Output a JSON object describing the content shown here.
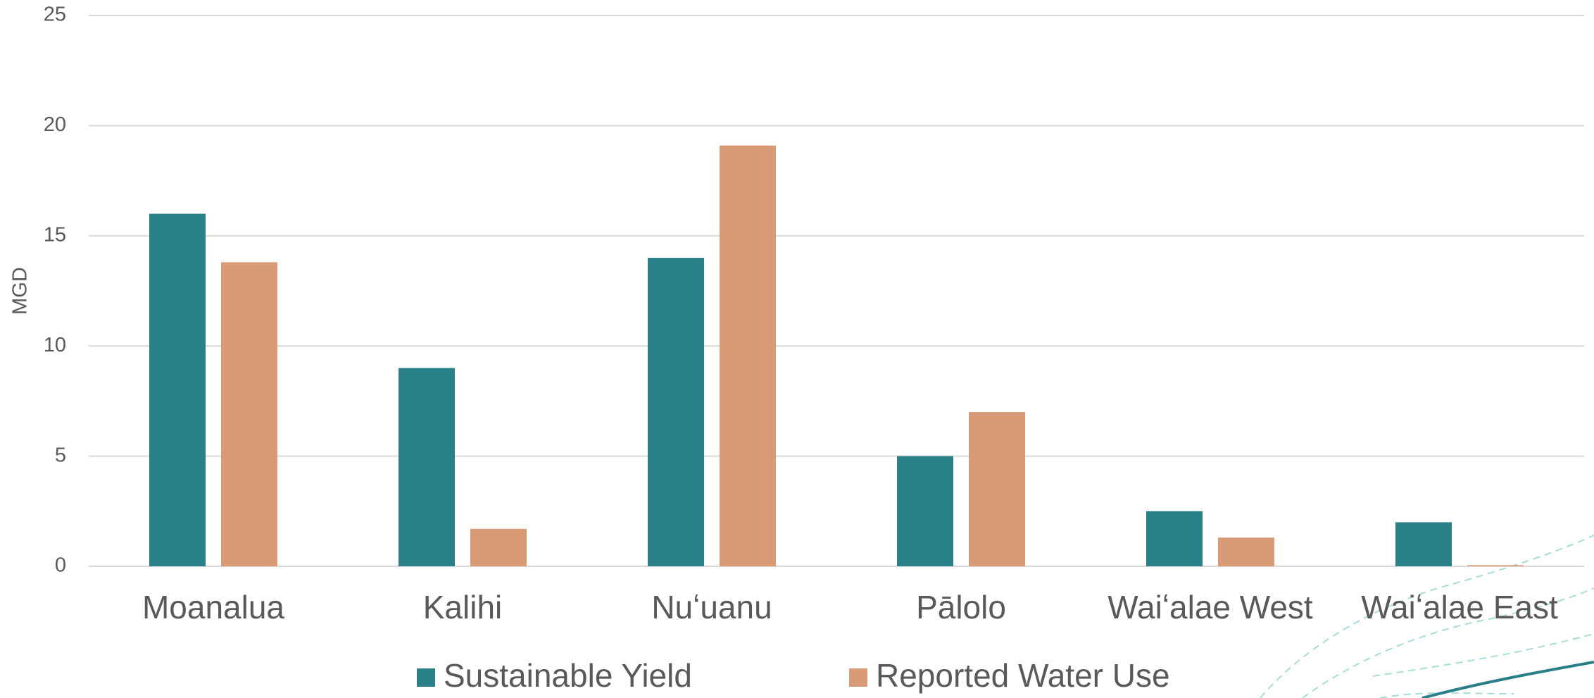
{
  "chart_data": {
    "type": "bar",
    "y_label": "MGD",
    "categories": [
      "Moanalua",
      "Kalihi",
      "Nuʻuanu",
      "Pālolo",
      "Waiʻalae West",
      "Waiʻalae East"
    ],
    "series": [
      {
        "name": "Sustainable Yield",
        "color": "#2a8089",
        "values": [
          16,
          9,
          14,
          5,
          2.5,
          2
        ]
      },
      {
        "name": "Reported Water Use",
        "color": "#d99a76",
        "values": [
          13.8,
          1.7,
          19.1,
          7,
          1.3,
          0.05
        ]
      }
    ],
    "ylim": [
      0,
      25
    ],
    "yticks": [
      0,
      5,
      10,
      15,
      20,
      25
    ],
    "grid": true
  }
}
